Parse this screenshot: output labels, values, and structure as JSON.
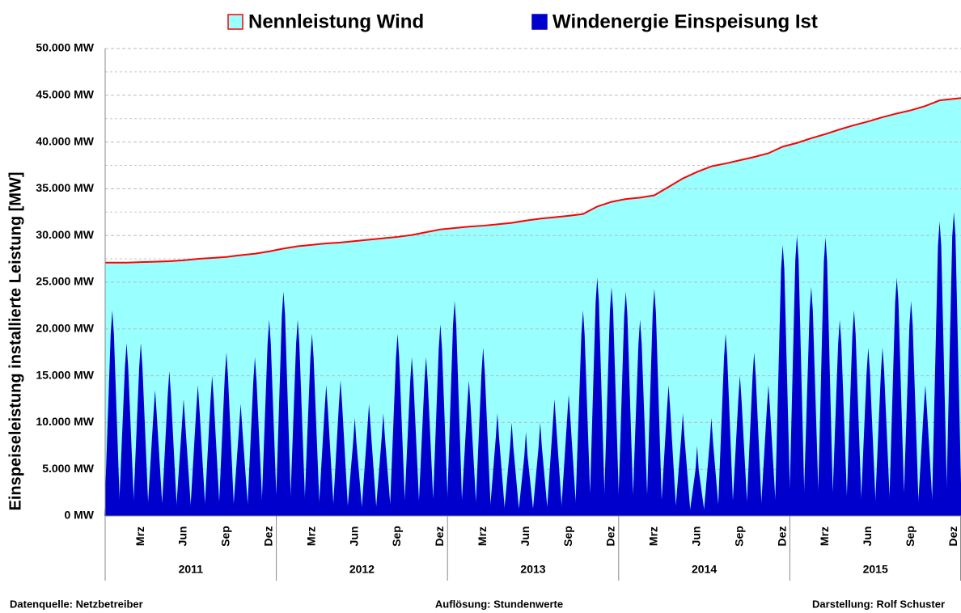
{
  "chart_data": {
    "type": "area",
    "legend": "top",
    "y_label": "Einspeiseleistung installierte Leistung [MW]",
    "categories": [
      null,
      null,
      "Mrz",
      null,
      null,
      "Jun",
      null,
      null,
      "Sep",
      null,
      null,
      "Dez",
      null,
      null,
      "Mrz",
      null,
      null,
      "Jun",
      null,
      null,
      "Sep",
      null,
      null,
      "Dez",
      null,
      null,
      "Mrz",
      null,
      null,
      "Jun",
      null,
      null,
      "Sep",
      null,
      null,
      "Dez",
      null,
      null,
      "Mrz",
      null,
      null,
      "Jun",
      null,
      null,
      "Sep",
      null,
      null,
      "Dez",
      null,
      null,
      "Mrz",
      null,
      null,
      "Jun",
      null,
      null,
      "Sep",
      null,
      null,
      "Dez"
    ],
    "year_groups": [
      "2011",
      "2012",
      "2013",
      "2014",
      "2015"
    ],
    "series": [
      {
        "name": "Nennleistung Wind",
        "color": "#99ffff",
        "line_color": "#ff0000",
        "style": "area",
        "values": [
          27100,
          27100,
          27150,
          27200,
          27250,
          27350,
          27500,
          27600,
          27700,
          27900,
          28050,
          28300,
          28600,
          28850,
          29000,
          29150,
          29250,
          29400,
          29550,
          29700,
          29850,
          30050,
          30350,
          30650,
          30800,
          30950,
          31050,
          31200,
          31350,
          31600,
          31800,
          31950,
          32100,
          32300,
          33100,
          33600,
          33900,
          34050,
          34300,
          35200,
          36100,
          36800,
          37400,
          37700,
          38050,
          38400,
          38800,
          39500,
          39900,
          40400,
          40850,
          41350,
          41800,
          42200,
          42650,
          43050,
          43400,
          43850,
          44450,
          44700
        ]
      },
      {
        "name": "Windenergie Einspeisung Ist",
        "color": "#0000cc",
        "style": "spikes",
        "values": [
          22000,
          18500,
          18500,
          13500,
          15500,
          12500,
          14000,
          15000,
          17500,
          12000,
          17000,
          21000,
          24000,
          21000,
          19500,
          14000,
          14500,
          10500,
          12000,
          11000,
          19500,
          17000,
          17000,
          20500,
          23000,
          14500,
          18000,
          11000,
          10000,
          9000,
          10000,
          12500,
          13000,
          22000,
          25500,
          24500,
          24000,
          21000,
          24300,
          14000,
          11000,
          7500,
          10500,
          19500,
          15000,
          17500,
          14000,
          29000,
          30000,
          24500,
          29800,
          21000,
          22000,
          18000,
          18000,
          25500,
          23000,
          14000,
          31500,
          32500
        ]
      }
    ],
    "ylim": [
      0,
      50000
    ],
    "yticks": [
      {
        "value": 0,
        "label": "0 MW"
      },
      {
        "value": 5000,
        "label": "5.000 MW"
      },
      {
        "value": 10000,
        "label": "10.000 MW"
      },
      {
        "value": 15000,
        "label": "15.000 MW"
      },
      {
        "value": 20000,
        "label": "20.000 MW"
      },
      {
        "value": 25000,
        "label": "25.000 MW"
      },
      {
        "value": 30000,
        "label": "30.000 MW"
      },
      {
        "value": 35000,
        "label": "35.000 MW"
      },
      {
        "value": 40000,
        "label": "40.000 MW"
      },
      {
        "value": 45000,
        "label": "45.000 MW"
      },
      {
        "value": 50000,
        "label": "50.000 MW"
      }
    ],
    "minor_yticks": [
      2500,
      7500,
      12500,
      17500,
      22500,
      27500,
      32500,
      37500,
      42500,
      47500
    ],
    "grid": true,
    "footer": {
      "left": "Datenquelle:  Netzbetreiber",
      "center": "Auflösung: Stundenwerte",
      "right": "Darstellung: Rolf Schuster"
    }
  }
}
